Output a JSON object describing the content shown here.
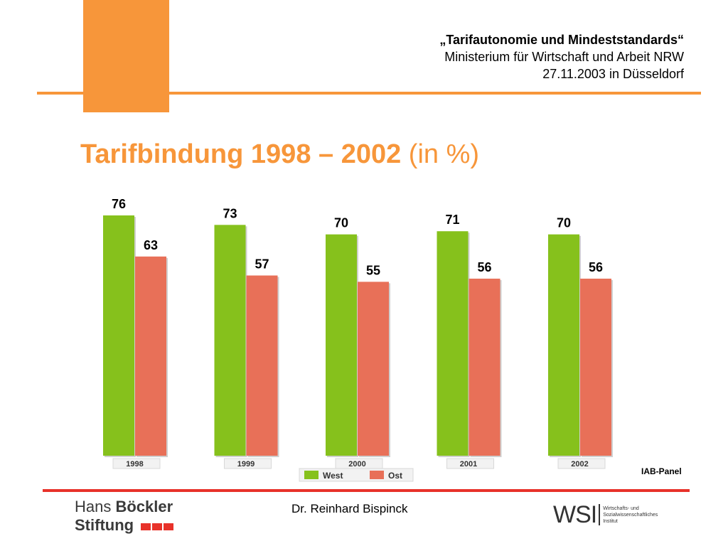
{
  "header": {
    "line1": "„Tarifautonomie und Mindeststandards“",
    "line2": "Ministerium für Wirtschaft und Arbeit NRW",
    "line3": "27.11.2003 in Düsseldorf"
  },
  "title": {
    "main": "Tarifbindung 1998 – 2002",
    "unit": " (in %)"
  },
  "colors": {
    "orange": "#f7963a",
    "west": "#86c11c",
    "ost": "#e87058",
    "red_line": "#e8322a"
  },
  "chart_data": {
    "type": "bar",
    "categories": [
      "1998",
      "1999",
      "2000",
      "2001",
      "2002"
    ],
    "series": [
      {
        "name": "West",
        "values": [
          76,
          73,
          70,
          71,
          70
        ]
      },
      {
        "name": "Ost",
        "values": [
          63,
          57,
          55,
          56,
          56
        ]
      }
    ],
    "ylim": [
      0,
      76
    ],
    "legend_position": "bottom",
    "grid": false
  },
  "source": "IAB-Panel",
  "footer": {
    "hbs_line1_a": "Hans ",
    "hbs_line1_b": "Böckler",
    "hbs_line2": "Stiftung",
    "author": "Dr. Reinhard Bispinck",
    "wsi_mark": "WSI",
    "wsi_text1": "Wirtschafts- und",
    "wsi_text2": "Sozialwissenschaftliches",
    "wsi_text3": "Institut"
  }
}
